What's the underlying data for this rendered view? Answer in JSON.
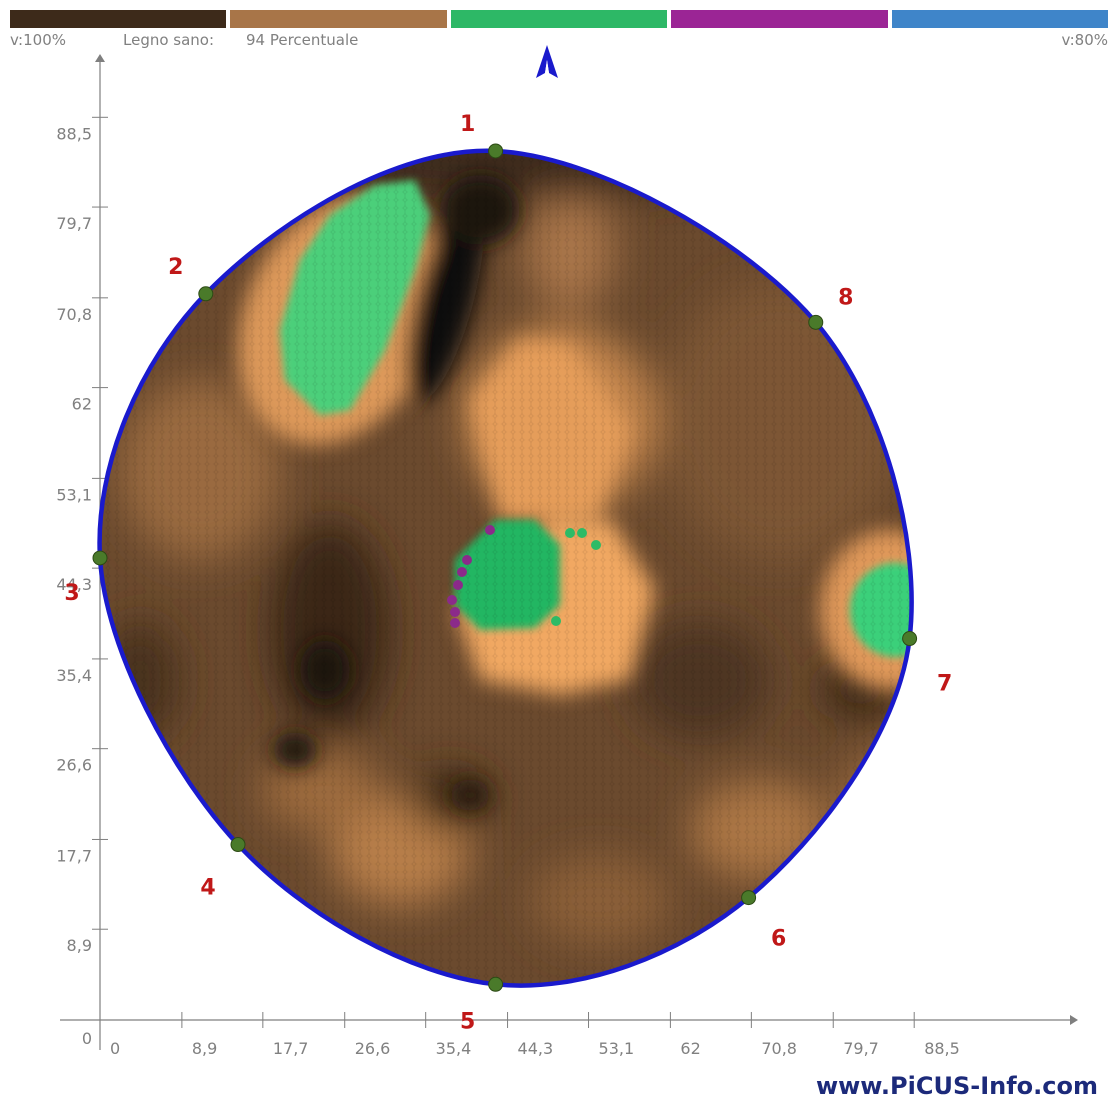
{
  "legend_bar": {
    "segments": [
      {
        "name": "dark-brown",
        "color": "#3d2a1a"
      },
      {
        "name": "light-brown",
        "color": "#a87548"
      },
      {
        "name": "green",
        "color": "#2db866"
      },
      {
        "name": "purple",
        "color": "#9b2595"
      },
      {
        "name": "blue",
        "color": "#3f85c9"
      }
    ],
    "left_value": "v:100%",
    "label": "Legno sano:",
    "value": "94 Percentuale",
    "right_value": "v:80%"
  },
  "north_arrow_icon": "north-arrow-icon",
  "axes": {
    "x_ticks": [
      "0",
      "8,9",
      "17,7",
      "26,6",
      "35,4",
      "44,3",
      "53,1",
      "62",
      "70,8",
      "79,7",
      "88,5"
    ],
    "y_ticks": [
      "88,5",
      "79,7",
      "70,8",
      "62",
      "53,1",
      "44,3",
      "35,4",
      "26,6",
      "17,7",
      "8,9"
    ],
    "origin_label": "0"
  },
  "sensors": [
    {
      "id": "1",
      "x": 43,
      "y": 85.2
    },
    {
      "id": "2",
      "x": 11.5,
      "y": 71.2
    },
    {
      "id": "3",
      "x": 0,
      "y": 45.3
    },
    {
      "id": "4",
      "x": 15,
      "y": 17.2
    },
    {
      "id": "5",
      "x": 43,
      "y": 3.5
    },
    {
      "id": "6",
      "x": 70.5,
      "y": 12
    },
    {
      "id": "7",
      "x": 88,
      "y": 37.4
    },
    {
      "id": "8",
      "x": 77.8,
      "y": 68.4
    }
  ],
  "colors": {
    "outline": "#1a1acc",
    "sensor_label": "#c01818",
    "sensor_dot": "#4a7a2a",
    "watermark": "#1c2a7a",
    "axis": "#7f7f7f",
    "tick_label": "#808080"
  },
  "watermark": "www.PiCUS-Info.com"
}
